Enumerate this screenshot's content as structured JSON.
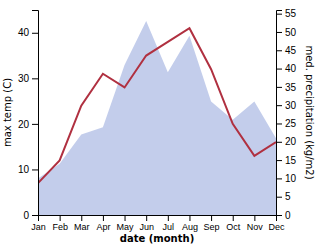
{
  "chart_data": {
    "type": "line",
    "categories": [
      "Jan",
      "Feb",
      "Mar",
      "Apr",
      "May",
      "Jun",
      "Jul",
      "Aug",
      "Sep",
      "Oct",
      "Nov",
      "Dec"
    ],
    "xlabel": "date (month)",
    "ylabel": "max temp (C)",
    "y2label": "med. precipitation (kg/m2)",
    "ylim": [
      0,
      45
    ],
    "yticks": [
      0,
      10,
      20,
      30,
      40
    ],
    "y2lim": [
      0,
      56
    ],
    "y2ticks": [
      0,
      5,
      10,
      15,
      20,
      25,
      30,
      35,
      40,
      45,
      50,
      55
    ],
    "grid": false,
    "series": [
      {
        "type": "area",
        "axis": "y2",
        "color": "#b8c4e8",
        "values": [
          10,
          14,
          22,
          24,
          41,
          53,
          39,
          49,
          31,
          26,
          31,
          21
        ]
      },
      {
        "type": "line",
        "color": "#b03040",
        "values": [
          7,
          12,
          24,
          31,
          28,
          35,
          38,
          41,
          32,
          20,
          13,
          16
        ]
      }
    ]
  }
}
